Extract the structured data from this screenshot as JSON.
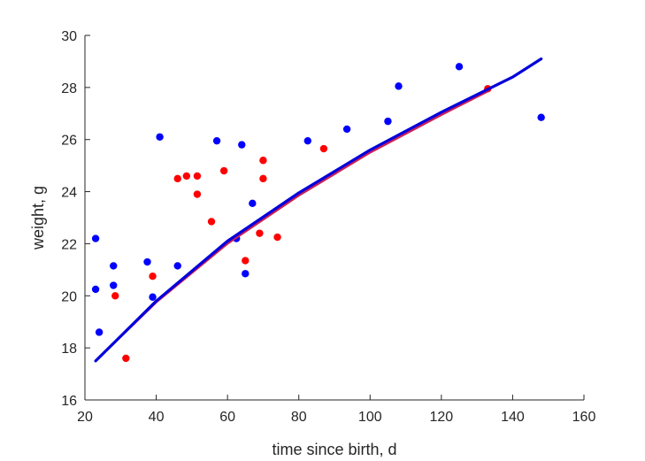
{
  "chart_data": {
    "type": "scatter",
    "title": "",
    "xlabel": "time since birth, d",
    "ylabel": "weight, g",
    "xlim": [
      20,
      160
    ],
    "ylim": [
      16,
      30
    ],
    "xticks": [
      20,
      40,
      60,
      80,
      100,
      120,
      140,
      160
    ],
    "yticks": [
      16,
      18,
      20,
      22,
      24,
      26,
      28,
      30
    ],
    "grid": false,
    "legend": "none",
    "series": [
      {
        "kind": "points",
        "color": "#0000ff",
        "x": [
          23,
          23,
          24,
          28,
          28,
          37.5,
          39,
          41,
          46,
          57,
          62.5,
          64,
          65,
          67,
          82.5,
          93.5,
          105,
          108,
          125,
          148
        ],
        "y": [
          22.2,
          20.25,
          18.6,
          21.15,
          20.4,
          21.3,
          19.95,
          26.1,
          21.15,
          25.95,
          22.2,
          25.8,
          20.85,
          23.55,
          25.95,
          26.4,
          26.7,
          28.05,
          28.8,
          26.85
        ]
      },
      {
        "kind": "points",
        "color": "#ff0000",
        "x": [
          28.5,
          31.5,
          39,
          46,
          48.5,
          51.5,
          51.5,
          55.5,
          59,
          65,
          69,
          70,
          70,
          74,
          87,
          133
        ],
        "y": [
          20.0,
          17.6,
          20.75,
          24.5,
          24.6,
          24.6,
          23.9,
          22.85,
          24.8,
          21.35,
          22.4,
          25.2,
          24.5,
          22.25,
          25.65,
          27.95
        ]
      },
      {
        "kind": "line",
        "color": "#cc1f55",
        "x": [
          23,
          40,
          60,
          80,
          100,
          120,
          133
        ],
        "y": [
          17.5,
          19.75,
          22.0,
          23.85,
          25.5,
          26.95,
          27.85
        ]
      },
      {
        "kind": "line",
        "color": "#0000dd",
        "x": [
          23,
          40,
          60,
          80,
          100,
          120,
          140,
          148
        ],
        "y": [
          17.5,
          19.8,
          22.1,
          23.95,
          25.6,
          27.05,
          28.4,
          29.1
        ]
      }
    ]
  }
}
